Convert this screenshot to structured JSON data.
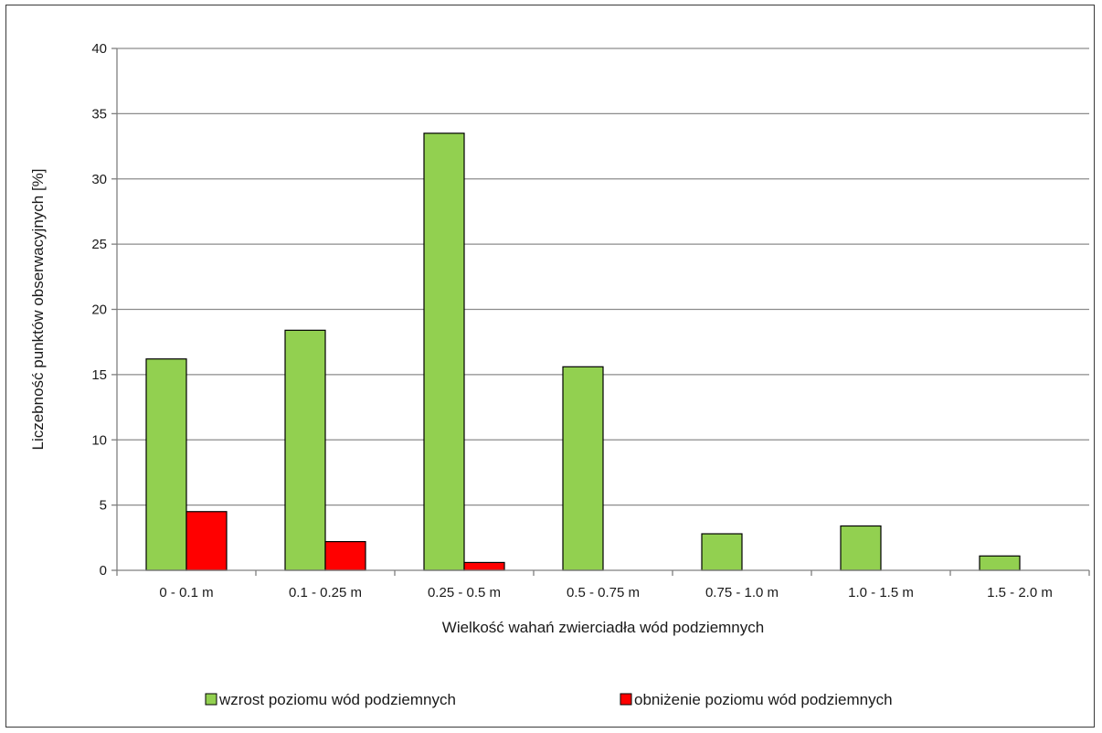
{
  "chart_data": {
    "type": "bar",
    "title": "",
    "xlabel": "Wielkość wahań zwierciadła wód podziemnych",
    "ylabel": "Liczebność punktów obserwacyjnych [%]",
    "ylim": [
      0,
      40
    ],
    "yticks": [
      0,
      5,
      10,
      15,
      20,
      25,
      30,
      35,
      40
    ],
    "ytick_labels": [
      "0",
      "5",
      "10",
      "15",
      "20",
      "25",
      "30",
      "35",
      "40"
    ],
    "grid": true,
    "legend_position": "bottom",
    "categories": [
      "0 - 0.1 m",
      "0.1 - 0.25 m",
      "0.25 - 0.5 m",
      "0.5 - 0.75 m",
      "0.75 - 1.0 m",
      "1.0 - 1.5 m",
      "1.5 - 2.0 m"
    ],
    "series": [
      {
        "name": "wzrost poziomu wód podziemnych",
        "color": "#92d050",
        "values": [
          16.2,
          18.4,
          33.5,
          15.6,
          2.8,
          3.4,
          1.1
        ]
      },
      {
        "name": "obniżenie poziomu wód podziemnych",
        "color": "#ff0000",
        "values": [
          4.5,
          2.2,
          0.6,
          0,
          0,
          0,
          0
        ]
      }
    ]
  }
}
